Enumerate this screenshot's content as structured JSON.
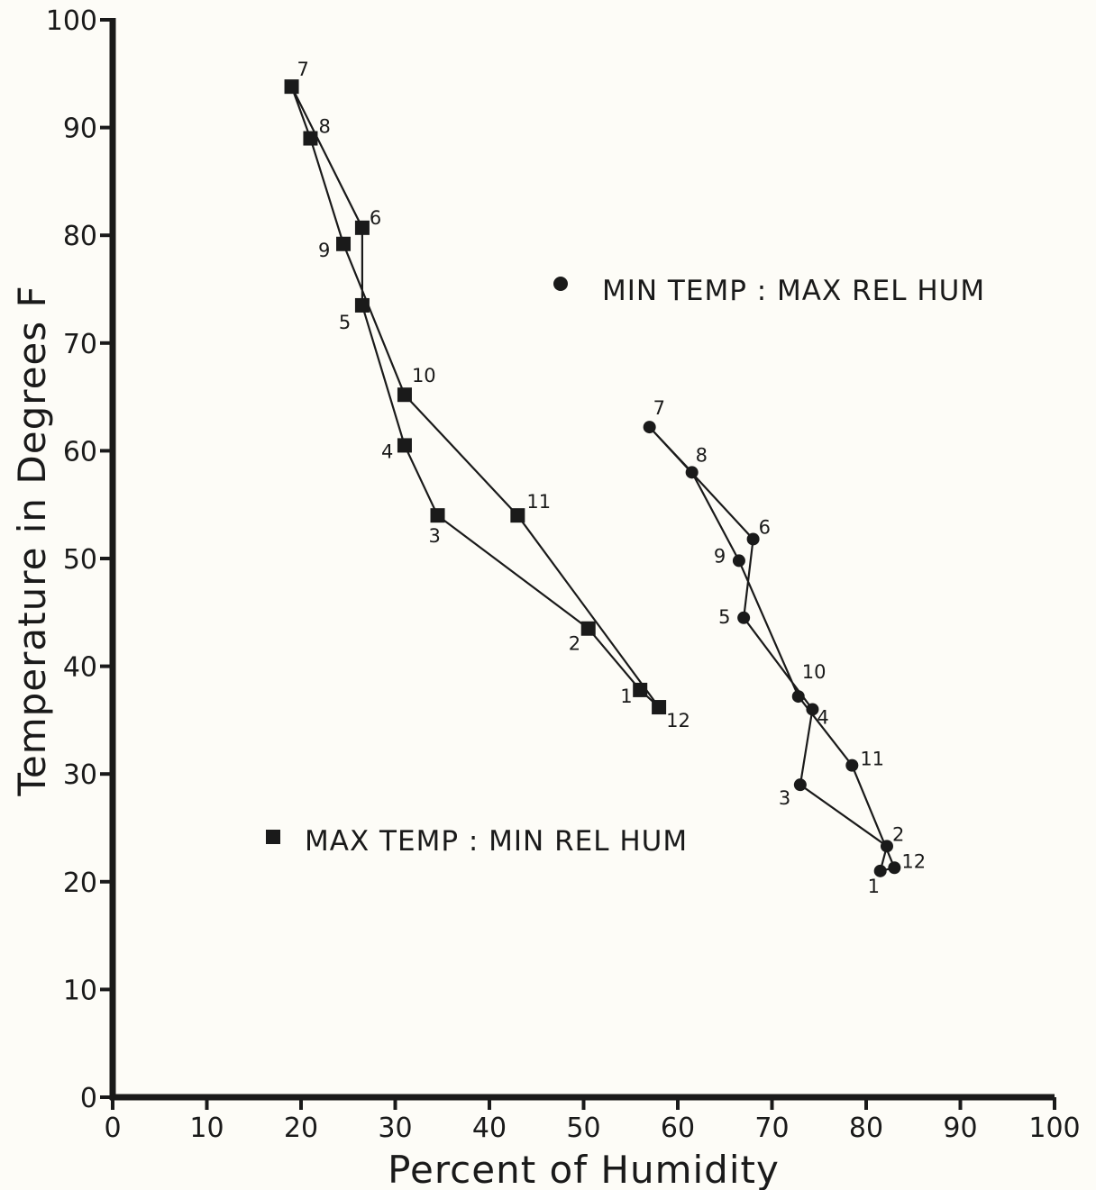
{
  "chart_data": {
    "type": "line",
    "xlabel": "Percent of Humidity",
    "ylabel": "Temperature in Degrees F",
    "xlim": [
      0,
      100
    ],
    "ylim": [
      0,
      100
    ],
    "xticks": [
      0,
      10,
      20,
      30,
      40,
      50,
      60,
      70,
      80,
      90,
      100
    ],
    "yticks": [
      0,
      10,
      20,
      30,
      40,
      50,
      60,
      70,
      80,
      90,
      100
    ],
    "grid": false,
    "series": [
      {
        "name": "MAX TEMP : MIN REL HUM",
        "marker": "square",
        "color": "#1a1a1a",
        "points": [
          {
            "label": "1",
            "x": 56,
            "y": 37.8
          },
          {
            "label": "2",
            "x": 50.5,
            "y": 43.5
          },
          {
            "label": "3",
            "x": 34.5,
            "y": 54
          },
          {
            "label": "4",
            "x": 31,
            "y": 60.5
          },
          {
            "label": "5",
            "x": 26.5,
            "y": 73.5
          },
          {
            "label": "6",
            "x": 26.5,
            "y": 80.7
          },
          {
            "label": "7",
            "x": 19,
            "y": 93.8
          },
          {
            "label": "8",
            "x": 21,
            "y": 89
          },
          {
            "label": "9",
            "x": 24.5,
            "y": 79.2
          },
          {
            "label": "10",
            "x": 31,
            "y": 65.2
          },
          {
            "label": "11",
            "x": 43,
            "y": 54
          },
          {
            "label": "12",
            "x": 58,
            "y": 36.2
          }
        ]
      },
      {
        "name": "MIN TEMP : MAX REL HUM",
        "marker": "circle",
        "color": "#1a1a1a",
        "points": [
          {
            "label": "1",
            "x": 81.5,
            "y": 21
          },
          {
            "label": "2",
            "x": 82.2,
            "y": 23.3
          },
          {
            "label": "3",
            "x": 73,
            "y": 29
          },
          {
            "label": "4",
            "x": 74.3,
            "y": 36
          },
          {
            "label": "5",
            "x": 67,
            "y": 44.5
          },
          {
            "label": "6",
            "x": 68,
            "y": 51.8
          },
          {
            "label": "7",
            "x": 57,
            "y": 62.2
          },
          {
            "label": "8",
            "x": 61.5,
            "y": 58
          },
          {
            "label": "9",
            "x": 66.5,
            "y": 49.8
          },
          {
            "label": "10",
            "x": 72.8,
            "y": 37.2
          },
          {
            "label": "11",
            "x": 78.5,
            "y": 30.8
          },
          {
            "label": "12",
            "x": 83,
            "y": 21.3
          }
        ]
      }
    ]
  }
}
